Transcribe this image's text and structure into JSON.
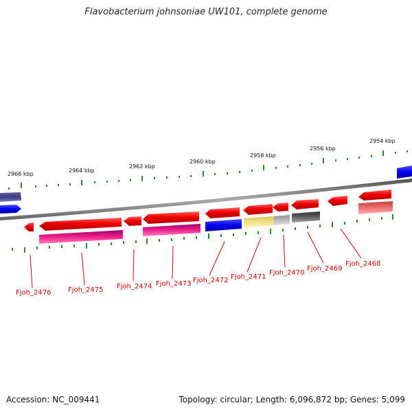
{
  "title": "Flavobacterium johnsoniae UW101, complete genome",
  "footer": {
    "accession": "Accession: NC_009441",
    "stats": "Topology: circular; Length: 6,096,872 bp; Genes: 5,099"
  },
  "scale_labels": [
    "2966 kbp",
    "2964 kbp",
    "2962 kbp",
    "2960 kbp",
    "2958 kbp",
    "2956 kbp",
    "2954 kbp"
  ],
  "gene_labels": [
    "Fjoh_2476",
    "Fjoh_2475",
    "Fjoh_2474",
    "Fjoh_2473",
    "Fjoh_2472",
    "Fjoh_2471",
    "Fjoh_2470",
    "Fjoh_2469",
    "Fjoh_2468"
  ],
  "colors": {
    "cds": "#ee0000",
    "backbone": "#888888",
    "tick": "#2a8a2a",
    "label": "#cc0000"
  }
}
